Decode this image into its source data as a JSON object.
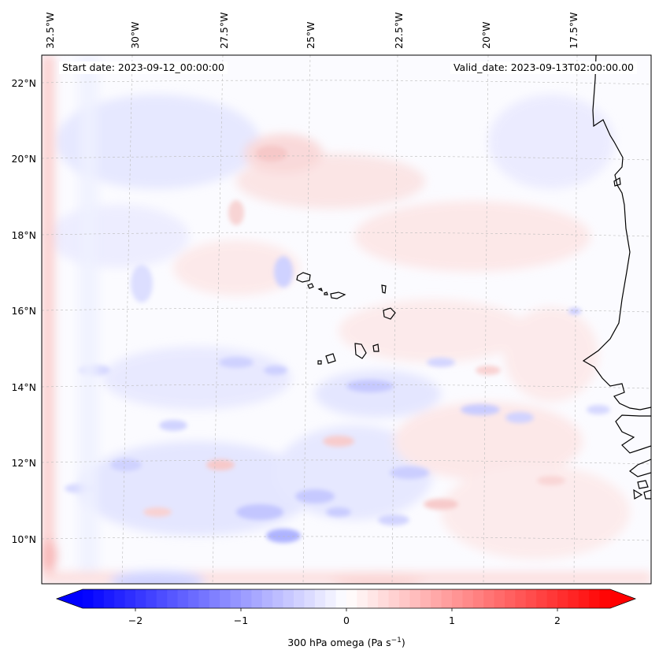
{
  "header": {
    "start_date": "Start date: 2023-09-12_00:00:00",
    "valid_date": "Valid_date: 2023-09-13T02:00:00.00"
  },
  "map": {
    "lon_labels": [
      "32.5°W",
      "30°W",
      "27.5°W",
      "25°W",
      "22.5°W",
      "20°W",
      "17.5°W"
    ],
    "lat_labels": [
      "22°N",
      "20°N",
      "18°N",
      "16°N",
      "14°N",
      "12°N",
      "10°N"
    ]
  },
  "colorbar": {
    "ticks": [
      "−2",
      "−1",
      "0",
      "1",
      "2"
    ],
    "title_main": "300 hPa omega (Pa s",
    "title_sup": "−1",
    "title_end": ")",
    "min": -2.5,
    "max": 2.5,
    "neg_color": "#0000ff",
    "pos_color": "#ff0000",
    "mid_color": "#ffffff"
  },
  "colors": {
    "coastline": "#000000",
    "gridline": "#bbbbbb"
  }
}
